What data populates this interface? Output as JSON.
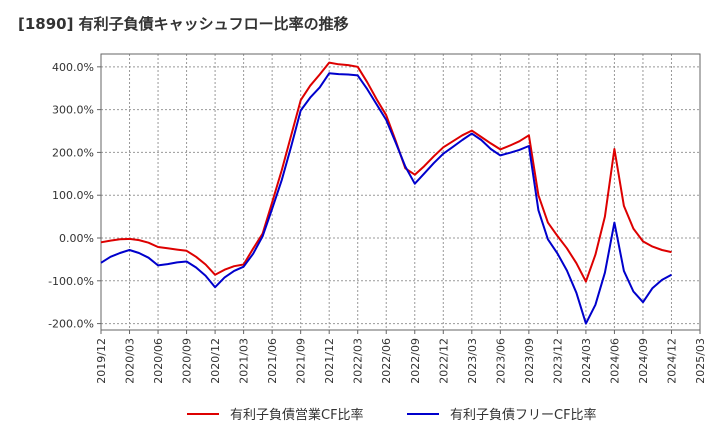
{
  "chart_data": {
    "type": "line",
    "title": "[1890]  有利子負債キャッシュフロー比率の推移",
    "xlabel": "",
    "ylabel": "",
    "ylim": [
      -215,
      430
    ],
    "yticks": [
      400,
      300,
      200,
      100,
      0,
      -100,
      -200
    ],
    "ytick_labels": [
      "400.0%",
      "300.0%",
      "200.0%",
      "100.0%",
      "0.00%",
      "-100.0%",
      "-200.0%"
    ],
    "xticks": [
      "2019/12",
      "2020/03",
      "2020/06",
      "2020/09",
      "2020/12",
      "2021/03",
      "2021/06",
      "2021/09",
      "2021/12",
      "2022/03",
      "2022/06",
      "2022/09",
      "2022/12",
      "2023/03",
      "2023/06",
      "2023/09",
      "2023/12",
      "2024/03",
      "2024/06",
      "2024/09",
      "2024/12",
      "2025/03"
    ],
    "grid": true,
    "legend_position": "bottom",
    "x": [
      "2019/12",
      "2020/01",
      "2020/02",
      "2020/03",
      "2020/04",
      "2020/05",
      "2020/06",
      "2020/07",
      "2020/08",
      "2020/09",
      "2020/10",
      "2020/11",
      "2020/12",
      "2021/01",
      "2021/02",
      "2021/03",
      "2021/04",
      "2021/05",
      "2021/06",
      "2021/07",
      "2021/08",
      "2021/09",
      "2021/10",
      "2021/11",
      "2021/12",
      "2022/01",
      "2022/02",
      "2022/03",
      "2022/04",
      "2022/05",
      "2022/06",
      "2022/07",
      "2022/08",
      "2022/09",
      "2022/10",
      "2022/11",
      "2022/12",
      "2023/01",
      "2023/02",
      "2023/03",
      "2023/04",
      "2023/05",
      "2023/06",
      "2023/07",
      "2023/08",
      "2023/09",
      "2023/10",
      "2023/11",
      "2023/12",
      "2024/01",
      "2024/02",
      "2024/03",
      "2024/04",
      "2024/05",
      "2024/06",
      "2024/07",
      "2024/08",
      "2024/09",
      "2024/10",
      "2024/11",
      "2024/12"
    ],
    "series": [
      {
        "name": "有利子負債営業CF比率",
        "color": "#dd0000",
        "values": [
          -10,
          -6,
          -3,
          -2,
          -5,
          -11,
          -21,
          -24,
          -27,
          -30,
          -44,
          -62,
          -86,
          -74,
          -66,
          -62,
          -25,
          10,
          83,
          158,
          240,
          322,
          356,
          382,
          410,
          406,
          404,
          400,
          364,
          324,
          287,
          227,
          163,
          148,
          168,
          191,
          212,
          226,
          240,
          251,
          236,
          221,
          207,
          216,
          226,
          240,
          100,
          36,
          5,
          -24,
          -59,
          -102,
          -39,
          50,
          208,
          75,
          22,
          -8,
          -20,
          -28,
          -33
        ]
      },
      {
        "name": "有利子負債フリーCF比率",
        "color": "#0000cc",
        "values": [
          -58,
          -44,
          -35,
          -28,
          -35,
          -46,
          -64,
          -61,
          -57,
          -55,
          -69,
          -88,
          -115,
          -92,
          -77,
          -67,
          -37,
          4,
          68,
          135,
          214,
          298,
          328,
          352,
          385,
          383,
          382,
          380,
          348,
          312,
          276,
          223,
          167,
          127,
          151,
          175,
          197,
          213,
          229,
          244,
          229,
          208,
          193,
          199,
          206,
          215,
          65,
          -3,
          -36,
          -76,
          -128,
          -200,
          -156,
          -81,
          36,
          -77,
          -125,
          -150,
          -117,
          -98,
          -86
        ]
      }
    ]
  }
}
